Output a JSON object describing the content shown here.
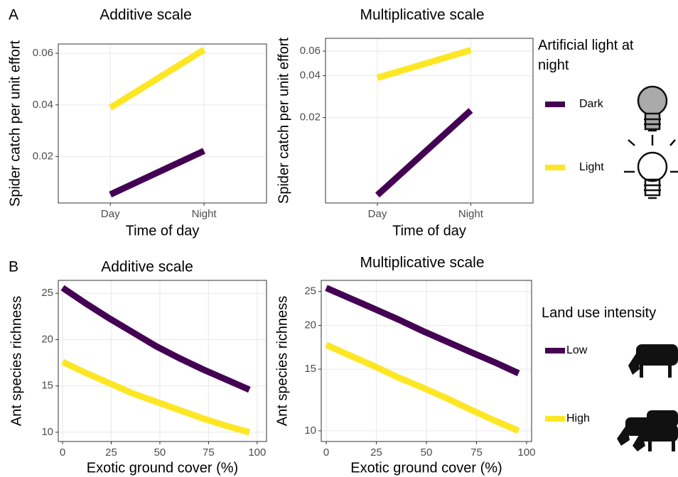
{
  "panel_labels": [
    "A",
    "B"
  ],
  "chart_data": [
    {
      "type": "line",
      "title": "Additive scale",
      "x_label": "Time of day",
      "y_label": "Spider catch per unit effort",
      "categories": [
        "Day",
        "Night"
      ],
      "series": [
        {
          "name": "Dark",
          "color": "#440154",
          "values": [
            0.0053,
            0.0222
          ]
        },
        {
          "name": "Light",
          "color": "#fde725",
          "values": [
            0.0389,
            0.0614
          ]
        }
      ],
      "ylim": [
        0.002,
        0.0636
      ],
      "yticks": [
        0.02,
        0.04,
        0.06
      ],
      "log_y": false,
      "grid": true
    },
    {
      "type": "line",
      "title": "Multiplicative scale",
      "x_label": "Time of day",
      "y_label": "Spider catch per unit effort",
      "legend_title": "Artificial light at night",
      "categories": [
        "Day",
        "Night"
      ],
      "series": [
        {
          "name": "Dark",
          "color": "#440154",
          "values": [
            0.00555,
            0.0225
          ]
        },
        {
          "name": "Light",
          "color": "#fde725",
          "values": [
            0.0386,
            0.061
          ]
        }
      ],
      "ylim": [
        0.00487,
        0.0741
      ],
      "yticks": [
        0.02,
        0.04,
        0.06
      ],
      "log_y": true,
      "grid": true
    },
    {
      "type": "line",
      "title": "Additive scale",
      "x_label": "Exotic ground cover (%)",
      "y_label": "Ant species richness",
      "x": [
        0,
        12,
        24,
        36,
        48,
        60,
        72,
        84,
        96
      ],
      "series": [
        {
          "name": "Low",
          "color": "#440154",
          "values": [
            25.6,
            23.9,
            22.3,
            20.8,
            19.3,
            18.0,
            16.8,
            15.7,
            14.6
          ]
        },
        {
          "name": "High",
          "color": "#fde725",
          "values": [
            17.6,
            16.4,
            15.3,
            14.2,
            13.3,
            12.4,
            11.5,
            10.7,
            10.0
          ]
        }
      ],
      "xlim": [
        -2.2,
        104.8
      ],
      "xticks": [
        0,
        25,
        50,
        75,
        100
      ],
      "ylim": [
        9.0,
        26.4
      ],
      "yticks": [
        10,
        15,
        20,
        25
      ],
      "log_y": false,
      "grid": true
    },
    {
      "type": "line",
      "title": "Multiplicative scale",
      "x_label": "Exotic ground cover (%)",
      "y_label": "Ant species richness",
      "legend_title": "Land use intensity",
      "x": [
        0,
        12,
        24,
        36,
        48,
        60,
        72,
        84,
        96
      ],
      "series": [
        {
          "name": "Low",
          "color": "#440154",
          "values": [
            25.6,
            23.9,
            22.3,
            20.8,
            19.3,
            18.0,
            16.8,
            15.7,
            14.6
          ]
        },
        {
          "name": "High",
          "color": "#fde725",
          "values": [
            17.6,
            16.4,
            15.3,
            14.2,
            13.3,
            12.4,
            11.5,
            10.7,
            10.0
          ]
        }
      ],
      "xlim": [
        -2.5,
        102.5
      ],
      "xticks": [
        0,
        25,
        50,
        75,
        100
      ],
      "ylim": [
        9.32,
        26.9
      ],
      "yticks": [
        10,
        15,
        20,
        25
      ],
      "log_y": true,
      "grid": true
    }
  ]
}
